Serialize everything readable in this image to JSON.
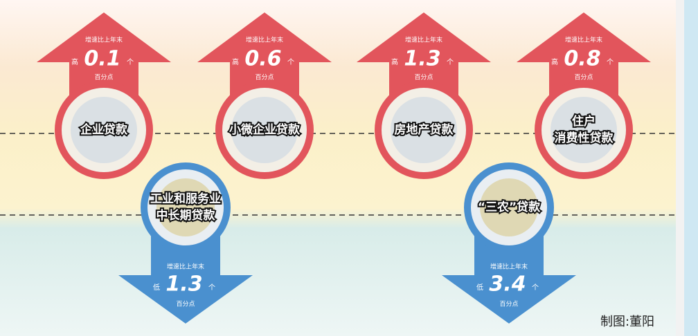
{
  "items": [
    {
      "direction": "up",
      "note": "增速比上年末",
      "comparison": "高",
      "value": "0.1",
      "unit": "个",
      "point": "百分点",
      "label": [
        "企业贷款"
      ]
    },
    {
      "direction": "up",
      "note": "增速比上年末",
      "comparison": "高",
      "value": "0.6",
      "unit": "个",
      "point": "百分点",
      "label": [
        "小微企业贷款"
      ]
    },
    {
      "direction": "up",
      "note": "增速比上年末",
      "comparison": "高",
      "value": "1.3",
      "unit": "个",
      "point": "百分点",
      "label": [
        "房地产贷款"
      ]
    },
    {
      "direction": "up",
      "note": "增速比上年末",
      "comparison": "高",
      "value": "0.8",
      "unit": "个",
      "point": "百分点",
      "label": [
        "住户",
        "消费性贷款"
      ]
    },
    {
      "direction": "down",
      "note": "增速比上年末",
      "comparison": "低",
      "value": "1.3",
      "unit": "个",
      "point": "百分点",
      "label": [
        "工业和服务业",
        "中长期贷款"
      ]
    },
    {
      "direction": "down",
      "note": "增速比上年末",
      "comparison": "低",
      "value": "3.4",
      "unit": "个",
      "point": "百分点",
      "label": [
        "“三农”贷款"
      ]
    }
  ],
  "credit": "制图:董阳"
}
